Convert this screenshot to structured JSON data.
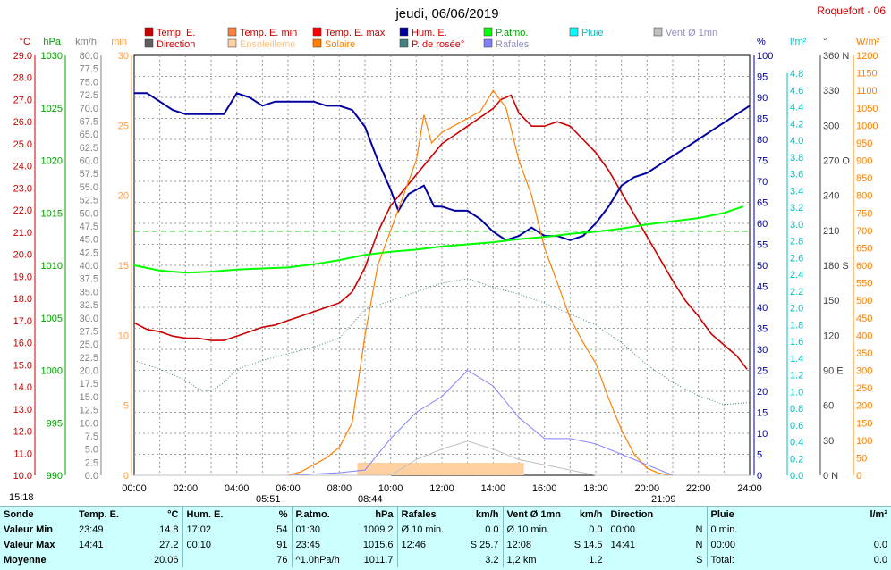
{
  "title": "jeudi, 06/06/2019",
  "station": "Roquefort - 06",
  "time_labels": {
    "left": "15:18",
    "sunrise": "05:51",
    "noon": "08:44",
    "sunset": "21:09"
  },
  "legend": [
    {
      "label": "Temp. E.",
      "color": "#cc0000"
    },
    {
      "label": "Temp. E. min",
      "color": "#ff8040"
    },
    {
      "label": "Temp. E. max",
      "color": "#ff0000"
    },
    {
      "label": "Hum. E.",
      "color": "#0000a0"
    },
    {
      "label": "P.atmo.",
      "color": "#00ff00"
    },
    {
      "label": "Pluie",
      "color": "#00ffff"
    },
    {
      "label": "Vent Ø 1mn",
      "color": "#c0c0c0"
    },
    {
      "label": "Direction",
      "color": "#606060"
    },
    {
      "label": "Ensoleilleme",
      "color": "#ffd0a0"
    },
    {
      "label": "Solaire",
      "color": "#ff8000"
    },
    {
      "label": "P. de rosée°",
      "color": "#408080"
    },
    {
      "label": "Rafales",
      "color": "#8080ff"
    }
  ],
  "axes": {
    "temp": {
      "unit": "°C",
      "color": "#cc0000",
      "ticks": [
        "29.0",
        "28.0",
        "27.0",
        "26.0",
        "25.0",
        "24.0",
        "23.0",
        "22.0",
        "21.0",
        "20.0",
        "19.0",
        "18.0",
        "17.0",
        "16.0",
        "15.0",
        "14.0",
        "13.0",
        "12.0",
        "11.0",
        "10.0"
      ]
    },
    "press": {
      "unit": "hPa",
      "color": "#00a000",
      "ticks": [
        "1030",
        "1025",
        "1020",
        "1015",
        "1010",
        "1005",
        "1000",
        "995",
        "990"
      ]
    },
    "wind": {
      "unit": "km/h",
      "color": "#808080",
      "ticks": [
        "80.0",
        "77.5",
        "75.0",
        "72.5",
        "70.0",
        "67.5",
        "65.0",
        "62.5",
        "60.0",
        "57.5",
        "55.0",
        "52.5",
        "50.0",
        "47.5",
        "45.0",
        "42.5",
        "40.0",
        "37.5",
        "35.0",
        "32.5",
        "30.0",
        "27.5",
        "25.0",
        "22.5",
        "20.0",
        "17.5",
        "15.0",
        "12.5",
        "10.0",
        "7.5",
        "5.0",
        "2.5",
        "0.0"
      ]
    },
    "sun": {
      "unit": "min",
      "color": "#ffc080",
      "ticks": [
        "30",
        "25",
        "20",
        "15",
        "10",
        "5",
        "0"
      ]
    },
    "hum": {
      "unit": "%",
      "color": "#0000a0",
      "ticks": [
        "100",
        "95",
        "90",
        "85",
        "80",
        "75",
        "70",
        "65",
        "60",
        "55",
        "50",
        "45",
        "40",
        "35",
        "30",
        "25",
        "20",
        "15",
        "10",
        "5",
        "0"
      ]
    },
    "rain": {
      "unit": "l/m²",
      "color": "#00c0c0",
      "ticks": [
        "4.8",
        "4.6",
        "4.4",
        "4.2",
        "4.0",
        "3.8",
        "3.6",
        "3.4",
        "3.2",
        "3.0",
        "2.8",
        "2.6",
        "2.4",
        "2.2",
        "2.0",
        "1.8",
        "1.6",
        "1.4",
        "1.2",
        "1.0",
        "0.8",
        "0.6",
        "0.4",
        "0.2",
        "0.0"
      ]
    },
    "dir": {
      "unit": "°",
      "color": "#606060",
      "ticks": [
        "360 N",
        "330",
        "300",
        "270 O",
        "240",
        "210",
        "180 S",
        "150",
        "120",
        "90 E",
        "60",
        "30",
        "0 N"
      ]
    },
    "solar": {
      "unit": "W/m²",
      "color": "#ff8000",
      "ticks": [
        "1200",
        "1150",
        "1100",
        "1050",
        "1000",
        "950",
        "900",
        "850",
        "800",
        "750",
        "700",
        "650",
        "600",
        "550",
        "500",
        "450",
        "400",
        "350",
        "300",
        "250",
        "200",
        "150",
        "100",
        "50",
        "0"
      ]
    },
    "x": {
      "ticks": [
        "00:00",
        "02:00",
        "04:00",
        "06:00",
        "08:00",
        "10:00",
        "12:00",
        "14:00",
        "16:00",
        "18:00",
        "20:00",
        "22:00",
        "24:00"
      ]
    }
  },
  "chart_data": {
    "type": "line",
    "title": "jeudi, 06/06/2019",
    "x_unit": "hour of day",
    "x_range": [
      0,
      24
    ],
    "series": [
      {
        "name": "Temp. E.",
        "unit": "°C",
        "color": "#cc0000",
        "points": [
          [
            0,
            16.9
          ],
          [
            0.5,
            16.6
          ],
          [
            1,
            16.5
          ],
          [
            1.5,
            16.3
          ],
          [
            2,
            16.2
          ],
          [
            2.5,
            16.2
          ],
          [
            3,
            16.1
          ],
          [
            3.5,
            16.1
          ],
          [
            4,
            16.3
          ],
          [
            4.5,
            16.5
          ],
          [
            5,
            16.7
          ],
          [
            5.5,
            16.8
          ],
          [
            6,
            17.0
          ],
          [
            6.5,
            17.2
          ],
          [
            7,
            17.4
          ],
          [
            7.5,
            17.6
          ],
          [
            8,
            17.8
          ],
          [
            8.5,
            18.3
          ],
          [
            9,
            19.4
          ],
          [
            9.5,
            21.0
          ],
          [
            10,
            22.2
          ],
          [
            10.5,
            22.9
          ],
          [
            11,
            23.6
          ],
          [
            11.5,
            24.3
          ],
          [
            12,
            25.0
          ],
          [
            12.5,
            25.4
          ],
          [
            13,
            25.8
          ],
          [
            13.5,
            26.2
          ],
          [
            14,
            26.6
          ],
          [
            14.3,
            27.0
          ],
          [
            14.7,
            27.2
          ],
          [
            15,
            26.4
          ],
          [
            15.5,
            25.8
          ],
          [
            16,
            25.8
          ],
          [
            16.5,
            26.0
          ],
          [
            17,
            25.8
          ],
          [
            17.5,
            25.2
          ],
          [
            18,
            24.6
          ],
          [
            18.5,
            23.8
          ],
          [
            19,
            22.8
          ],
          [
            19.5,
            21.8
          ],
          [
            20,
            20.8
          ],
          [
            20.5,
            19.8
          ],
          [
            21,
            18.8
          ],
          [
            21.5,
            17.9
          ],
          [
            22,
            17.2
          ],
          [
            22.5,
            16.4
          ],
          [
            23,
            15.9
          ],
          [
            23.5,
            15.4
          ],
          [
            23.9,
            14.8
          ]
        ]
      },
      {
        "name": "Hum. E.",
        "unit": "%",
        "color": "#0000a0",
        "points": [
          [
            0,
            91
          ],
          [
            0.5,
            91
          ],
          [
            1,
            89
          ],
          [
            1.5,
            87
          ],
          [
            2,
            86
          ],
          [
            2.5,
            86
          ],
          [
            3,
            86
          ],
          [
            3.5,
            86
          ],
          [
            4,
            91
          ],
          [
            4.5,
            90
          ],
          [
            5,
            88
          ],
          [
            5.5,
            89
          ],
          [
            6,
            89
          ],
          [
            6.5,
            89
          ],
          [
            7,
            89
          ],
          [
            7.5,
            88
          ],
          [
            8,
            88
          ],
          [
            8.5,
            87
          ],
          [
            9,
            83
          ],
          [
            9.5,
            75
          ],
          [
            10,
            68
          ],
          [
            10.3,
            63
          ],
          [
            10.7,
            67
          ],
          [
            11,
            68
          ],
          [
            11.3,
            69
          ],
          [
            11.7,
            64
          ],
          [
            12,
            64
          ],
          [
            12.5,
            63
          ],
          [
            13,
            63
          ],
          [
            13.5,
            61
          ],
          [
            14,
            58
          ],
          [
            14.5,
            56
          ],
          [
            15,
            57
          ],
          [
            15.5,
            59
          ],
          [
            16,
            57
          ],
          [
            16.5,
            57
          ],
          [
            17,
            56
          ],
          [
            17.5,
            57
          ],
          [
            18,
            60
          ],
          [
            18.5,
            64
          ],
          [
            19,
            69
          ],
          [
            19.5,
            71
          ],
          [
            20,
            72
          ],
          [
            20.5,
            74
          ],
          [
            21,
            76
          ],
          [
            21.5,
            78
          ],
          [
            22,
            80
          ],
          [
            22.5,
            82
          ],
          [
            23,
            84
          ],
          [
            23.5,
            86
          ],
          [
            24,
            88
          ]
        ]
      },
      {
        "name": "P.atmo.",
        "unit": "hPa",
        "color": "#00ff00",
        "points": [
          [
            0,
            1010
          ],
          [
            1,
            1009.5
          ],
          [
            2,
            1009.3
          ],
          [
            3,
            1009.4
          ],
          [
            4,
            1009.6
          ],
          [
            5,
            1009.7
          ],
          [
            6,
            1009.8
          ],
          [
            7,
            1010.1
          ],
          [
            8,
            1010.5
          ],
          [
            9,
            1011.0
          ],
          [
            10,
            1011.3
          ],
          [
            11,
            1011.5
          ],
          [
            12,
            1011.8
          ],
          [
            13,
            1012.0
          ],
          [
            14,
            1012.2
          ],
          [
            15,
            1012.5
          ],
          [
            16,
            1012.7
          ],
          [
            17,
            1013.0
          ],
          [
            18,
            1013.2
          ],
          [
            19,
            1013.5
          ],
          [
            20,
            1013.9
          ],
          [
            21,
            1014.2
          ],
          [
            22,
            1014.5
          ],
          [
            23,
            1015.0
          ],
          [
            23.75,
            1015.6
          ]
        ]
      },
      {
        "name": "P. de rosée°",
        "unit": "°C",
        "color": "#408080",
        "points": [
          [
            0,
            15.2
          ],
          [
            1,
            14.8
          ],
          [
            2,
            14.3
          ],
          [
            2.5,
            13.9
          ],
          [
            3,
            13.8
          ],
          [
            3.5,
            14.2
          ],
          [
            4,
            14.8
          ],
          [
            5,
            15.2
          ],
          [
            6,
            15.5
          ],
          [
            7,
            15.8
          ],
          [
            8,
            16.2
          ],
          [
            9,
            17.5
          ],
          [
            10,
            17.9
          ],
          [
            11,
            18.3
          ],
          [
            12,
            18.7
          ],
          [
            13,
            18.9
          ],
          [
            14,
            18.5
          ],
          [
            15,
            18.2
          ],
          [
            16,
            17.8
          ],
          [
            17,
            17.3
          ],
          [
            18,
            16.8
          ],
          [
            19,
            16.0
          ],
          [
            20,
            15.0
          ],
          [
            21,
            14.2
          ],
          [
            22,
            13.6
          ],
          [
            23,
            13.2
          ],
          [
            24,
            13.3
          ]
        ]
      },
      {
        "name": "Solaire",
        "unit": "W/m²",
        "color": "#ff8000",
        "points": [
          [
            6,
            0
          ],
          [
            6.5,
            10
          ],
          [
            7,
            30
          ],
          [
            7.5,
            50
          ],
          [
            8,
            80
          ],
          [
            8.5,
            150
          ],
          [
            9,
            400
          ],
          [
            9.5,
            600
          ],
          [
            10,
            700
          ],
          [
            10.5,
            800
          ],
          [
            11,
            900
          ],
          [
            11.3,
            1030
          ],
          [
            11.6,
            950
          ],
          [
            12,
            980
          ],
          [
            12.5,
            1000
          ],
          [
            13,
            1020
          ],
          [
            13.5,
            1040
          ],
          [
            14,
            1100
          ],
          [
            14.5,
            1050
          ],
          [
            15,
            900
          ],
          [
            15.5,
            800
          ],
          [
            16,
            650
          ],
          [
            16.5,
            550
          ],
          [
            17,
            450
          ],
          [
            17.5,
            380
          ],
          [
            18,
            320
          ],
          [
            18.5,
            220
          ],
          [
            19,
            130
          ],
          [
            19.5,
            60
          ],
          [
            20,
            20
          ],
          [
            20.5,
            5
          ],
          [
            21,
            0
          ]
        ]
      },
      {
        "name": "Rafales",
        "unit": "km/h",
        "color": "#8080ff",
        "points": [
          [
            0,
            0
          ],
          [
            6,
            0
          ],
          [
            8,
            0.5
          ],
          [
            9,
            1
          ],
          [
            10,
            7
          ],
          [
            11,
            12
          ],
          [
            12,
            15
          ],
          [
            13,
            20
          ],
          [
            14,
            17
          ],
          [
            15,
            11
          ],
          [
            16,
            7
          ],
          [
            17,
            7
          ],
          [
            18,
            6
          ],
          [
            19,
            4
          ],
          [
            20,
            2
          ],
          [
            21,
            0
          ],
          [
            24,
            0
          ]
        ]
      },
      {
        "name": "Vent Ø 1mn",
        "unit": "km/h",
        "color": "#c0c0c0",
        "points": [
          [
            0,
            0
          ],
          [
            10,
            0
          ],
          [
            11,
            3
          ],
          [
            12,
            5
          ],
          [
            13,
            6.5
          ],
          [
            14,
            5
          ],
          [
            15,
            3
          ],
          [
            16,
            2
          ],
          [
            17,
            1
          ],
          [
            18,
            0
          ],
          [
            24,
            0
          ]
        ]
      }
    ]
  },
  "summary": {
    "headers": [
      "Sonde",
      "Temp. E.",
      "°C",
      "Hum. E.",
      "%",
      "P.atmo.",
      "hPa",
      "Rafales",
      "km/h",
      "Vent Ø 1mn",
      "km/h",
      "Direction",
      "",
      "Pluie",
      "l/m²"
    ],
    "rows": [
      [
        "Valeur Min",
        "23:49",
        "14.8",
        "17:02",
        "54",
        "01:30",
        "1009.2",
        "Ø 10 min.",
        "0.0",
        "Ø 10 min.",
        "0.0",
        "00:00",
        "N",
        "0 min.",
        ""
      ],
      [
        "Valeur Max",
        "14:41",
        "27.2",
        "00:10",
        "91",
        "23:45",
        "1015.6",
        "12:46",
        "S 25.7",
        "12:08",
        "S 14.5",
        "14:41",
        "N",
        "00:00",
        "0.0"
      ],
      [
        "Moyenne",
        "",
        "20.06",
        "",
        "76",
        "^1.0hPa/h",
        "1011.7",
        "",
        "3.2",
        "1,2 km",
        "1.2",
        "",
        "S",
        "Total:",
        "0.0"
      ]
    ]
  }
}
